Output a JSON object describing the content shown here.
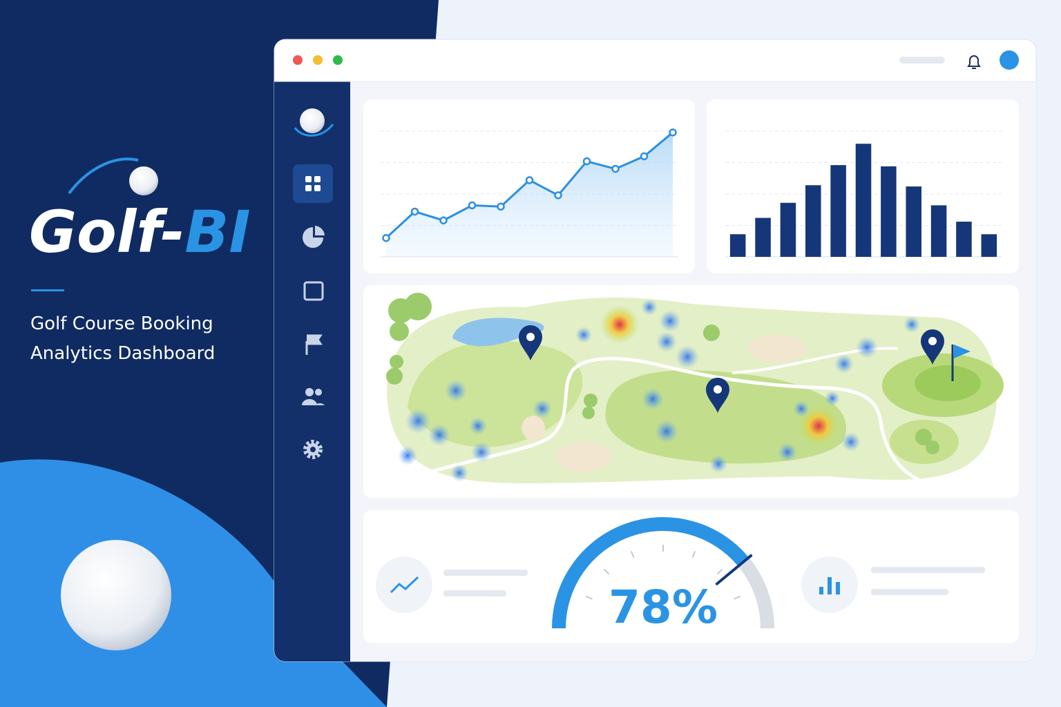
{
  "brand": {
    "name_first": "Golf-",
    "name_second": "BI"
  },
  "tagline": [
    "Golf Course Booking",
    "Analytics Dashboard"
  ],
  "chart_data": [
    {
      "type": "line",
      "categories": [
        null,
        null,
        null,
        null,
        null,
        null,
        null,
        null,
        null,
        null,
        null
      ],
      "values": [
        15,
        36,
        29,
        41,
        40,
        61,
        49,
        76,
        70,
        80,
        99
      ],
      "color": "#2b8fe0",
      "ylim": [
        0,
        100
      ],
      "yticks": [
        25,
        50,
        75,
        100
      ],
      "grid": true
    },
    {
      "type": "bar",
      "categories": [
        null,
        null,
        null,
        null,
        null,
        null,
        null,
        null,
        null,
        null,
        null
      ],
      "values": [
        18,
        31,
        43,
        57,
        73,
        90,
        72,
        56,
        41,
        28,
        18
      ],
      "color": "#15377a",
      "ylim": [
        0,
        100
      ],
      "yticks": [
        25,
        50,
        75,
        100
      ],
      "grid": true
    },
    {
      "type": "gauge",
      "values": [
        78
      ],
      "value_labels": [
        "78%"
      ],
      "color": "#2a93e4",
      "ylim": [
        0,
        100
      ]
    }
  ]
}
